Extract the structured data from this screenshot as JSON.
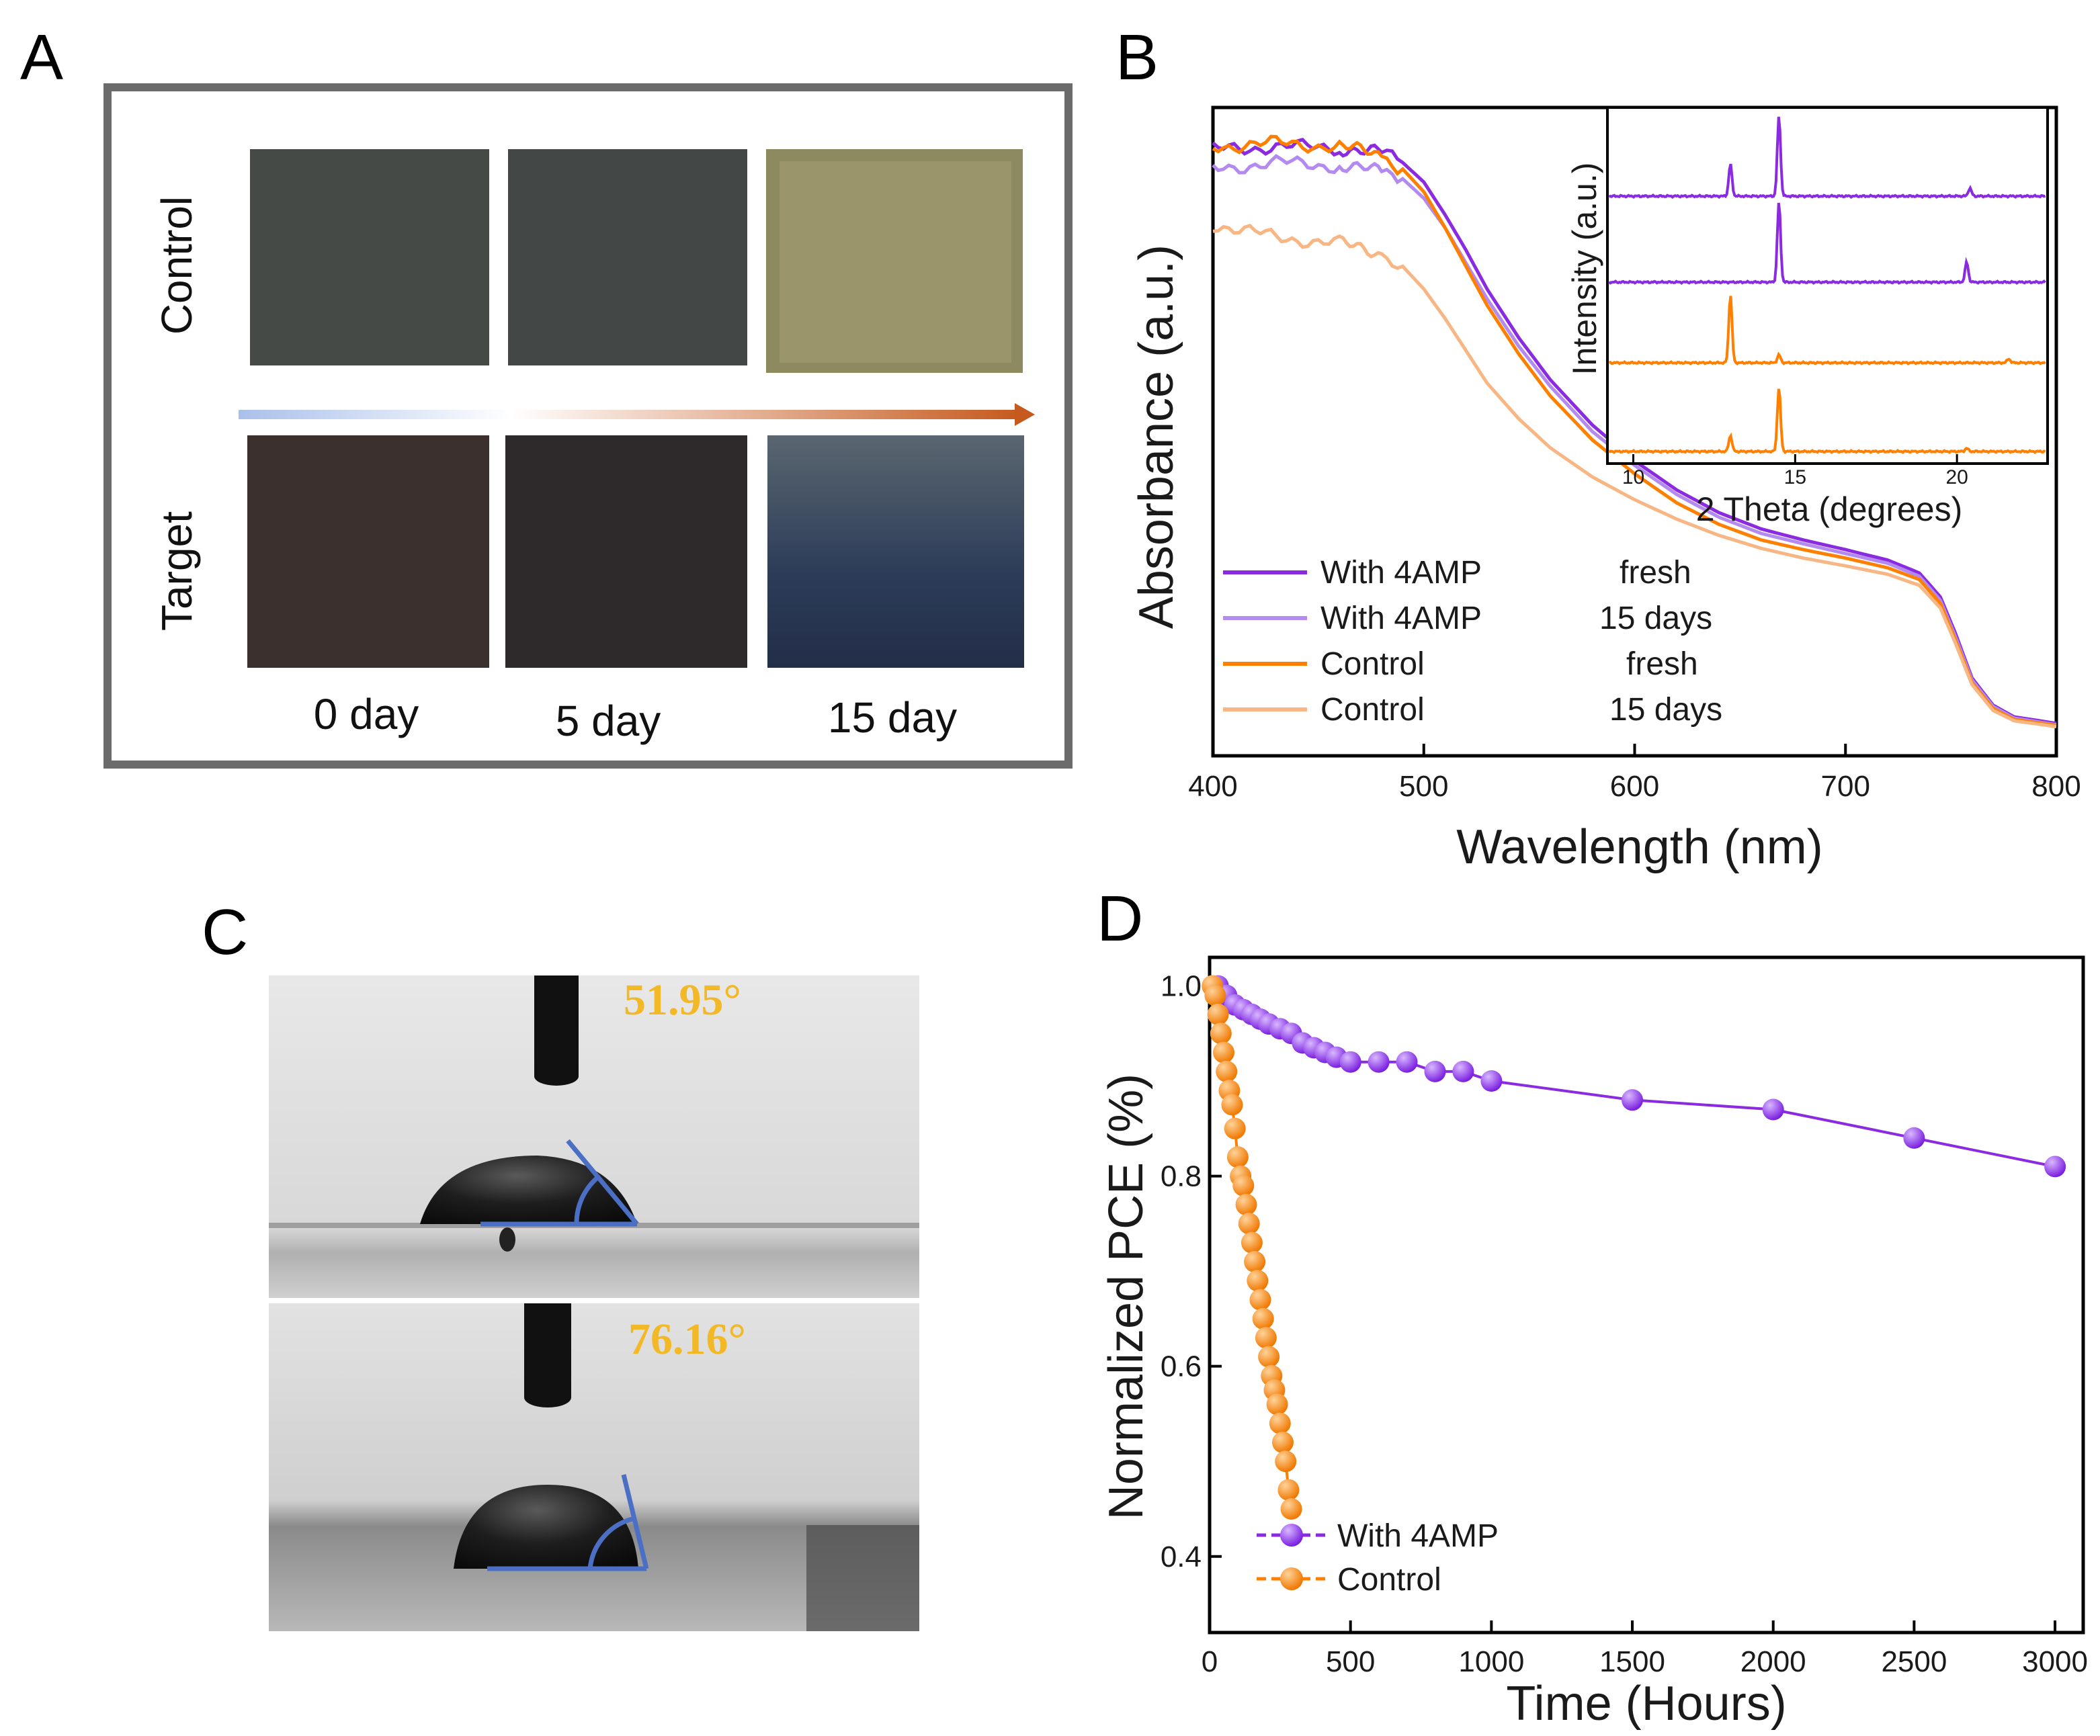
{
  "colors": {
    "purple": "#8a2be2",
    "light_purple": "#b28af0",
    "orange": "#ff8000",
    "light_orange": "#f7b683",
    "angle_text": "#f2b825",
    "angle_line": "#4a6fc4"
  },
  "panelA": {
    "letter": "A",
    "rows": [
      "Control",
      "Target"
    ],
    "days": [
      "0 day",
      "5 day",
      "15 day"
    ]
  },
  "panelB": {
    "letter": "B",
    "legend_labels": [
      "With 4AMP",
      "With 4AMP",
      "Control",
      "Control"
    ],
    "legend_states": [
      "fresh",
      "15 days",
      "fresh",
      "15 days"
    ],
    "inset_ylabel": "Intensity (a.u.)",
    "inset_xlabel": "2 Theta (degrees)",
    "inset_xticks": [
      "10",
      "15",
      "20"
    ]
  },
  "panelC": {
    "letter": "C",
    "angles": [
      "51.95°",
      "76.16°"
    ]
  },
  "panelD": {
    "letter": "D"
  },
  "chart_data": [
    {
      "type": "line",
      "title": "",
      "xlabel": "Wavelength (nm)",
      "ylabel": "Absorbance (a.u.)",
      "xlim": [
        400,
        800
      ],
      "ylim": [
        0,
        1
      ],
      "xticks": [
        "400",
        "500",
        "600",
        "700",
        "800"
      ],
      "x": [
        400,
        430,
        460,
        480,
        490,
        500,
        510,
        520,
        530,
        545,
        560,
        580,
        600,
        620,
        640,
        660,
        680,
        700,
        720,
        735,
        745,
        752,
        760,
        770,
        780,
        800
      ],
      "series": [
        {
          "name": "With 4AMP fresh",
          "values": [
            0.935,
            0.94,
            0.938,
            0.93,
            0.915,
            0.885,
            0.835,
            0.78,
            0.72,
            0.645,
            0.58,
            0.51,
            0.455,
            0.41,
            0.375,
            0.35,
            0.333,
            0.318,
            0.302,
            0.282,
            0.245,
            0.19,
            0.12,
            0.078,
            0.06,
            0.05
          ]
        },
        {
          "name": "With 4AMP 15 days",
          "values": [
            0.905,
            0.915,
            0.91,
            0.9,
            0.89,
            0.86,
            0.815,
            0.76,
            0.705,
            0.632,
            0.57,
            0.5,
            0.448,
            0.403,
            0.368,
            0.343,
            0.327,
            0.312,
            0.297,
            0.277,
            0.24,
            0.185,
            0.117,
            0.076,
            0.058,
            0.048
          ]
        },
        {
          "name": "Control fresh",
          "values": [
            0.94,
            0.945,
            0.94,
            0.925,
            0.905,
            0.87,
            0.815,
            0.755,
            0.695,
            0.62,
            0.555,
            0.487,
            0.435,
            0.39,
            0.357,
            0.333,
            0.318,
            0.305,
            0.29,
            0.272,
            0.235,
            0.18,
            0.113,
            0.073,
            0.056,
            0.047
          ]
        },
        {
          "name": "Control 15 days",
          "values": [
            0.82,
            0.8,
            0.79,
            0.775,
            0.755,
            0.72,
            0.675,
            0.625,
            0.575,
            0.52,
            0.475,
            0.43,
            0.395,
            0.365,
            0.34,
            0.32,
            0.305,
            0.293,
            0.28,
            0.263,
            0.228,
            0.175,
            0.11,
            0.07,
            0.054,
            0.045
          ]
        }
      ]
    },
    {
      "type": "line",
      "title": "",
      "xlabel": "2 Theta (degrees)",
      "ylabel": "Intensity (a.u.)",
      "xlim": [
        9.2,
        22.8
      ],
      "xticks": [
        "10",
        "15",
        "20"
      ],
      "series": [
        {
          "name": "With 4AMP fresh",
          "peaks": [
            {
              "x": 13.0,
              "h": 0.4
            },
            {
              "x": 14.5,
              "h": 1.0
            },
            {
              "x": 20.4,
              "h": 0.1
            }
          ]
        },
        {
          "name": "With 4AMP 15 days",
          "peaks": [
            {
              "x": 14.5,
              "h": 1.0
            },
            {
              "x": 20.3,
              "h": 0.25
            }
          ]
        },
        {
          "name": "Control fresh",
          "peaks": [
            {
              "x": 13.0,
              "h": 0.85
            },
            {
              "x": 14.5,
              "h": 0.1
            },
            {
              "x": 21.6,
              "h": 0.05
            }
          ]
        },
        {
          "name": "Control 15 days",
          "peaks": [
            {
              "x": 13.0,
              "h": 0.2
            },
            {
              "x": 14.5,
              "h": 0.8
            },
            {
              "x": 20.3,
              "h": 0.04
            }
          ]
        }
      ]
    },
    {
      "type": "line",
      "title": "",
      "xlabel": "Time (Hours)",
      "ylabel": "Normalized PCE  (%)",
      "xlim": [
        0,
        3100
      ],
      "ylim": [
        0.32,
        1.03
      ],
      "xticks": [
        "0",
        "500",
        "1000",
        "1500",
        "2000",
        "2500",
        "3000"
      ],
      "yticks": [
        "0.4",
        "0.6",
        "0.8",
        "1.0"
      ],
      "series": [
        {
          "name": "With 4AMP",
          "x": [
            30,
            60,
            90,
            120,
            150,
            180,
            210,
            250,
            290,
            330,
            370,
            410,
            450,
            500,
            600,
            700,
            800,
            900,
            1000,
            1500,
            2000,
            2500,
            3000
          ],
          "values": [
            1.0,
            0.99,
            0.98,
            0.975,
            0.97,
            0.965,
            0.96,
            0.955,
            0.95,
            0.94,
            0.935,
            0.93,
            0.925,
            0.92,
            0.92,
            0.92,
            0.91,
            0.91,
            0.9,
            0.88,
            0.87,
            0.84,
            0.81
          ]
        },
        {
          "name": "Control",
          "x": [
            10,
            20,
            30,
            40,
            50,
            60,
            70,
            80,
            90,
            100,
            110,
            120,
            130,
            140,
            150,
            160,
            170,
            180,
            190,
            200,
            210,
            220,
            230,
            240,
            250,
            260,
            270,
            280,
            290
          ],
          "values": [
            1.0,
            0.99,
            0.97,
            0.95,
            0.93,
            0.91,
            0.89,
            0.875,
            0.85,
            0.82,
            0.8,
            0.79,
            0.77,
            0.75,
            0.73,
            0.71,
            0.69,
            0.67,
            0.65,
            0.63,
            0.61,
            0.59,
            0.575,
            0.56,
            0.54,
            0.52,
            0.5,
            0.47,
            0.45
          ]
        }
      ],
      "legend_labels": [
        "With 4AMP",
        "Control"
      ]
    }
  ]
}
